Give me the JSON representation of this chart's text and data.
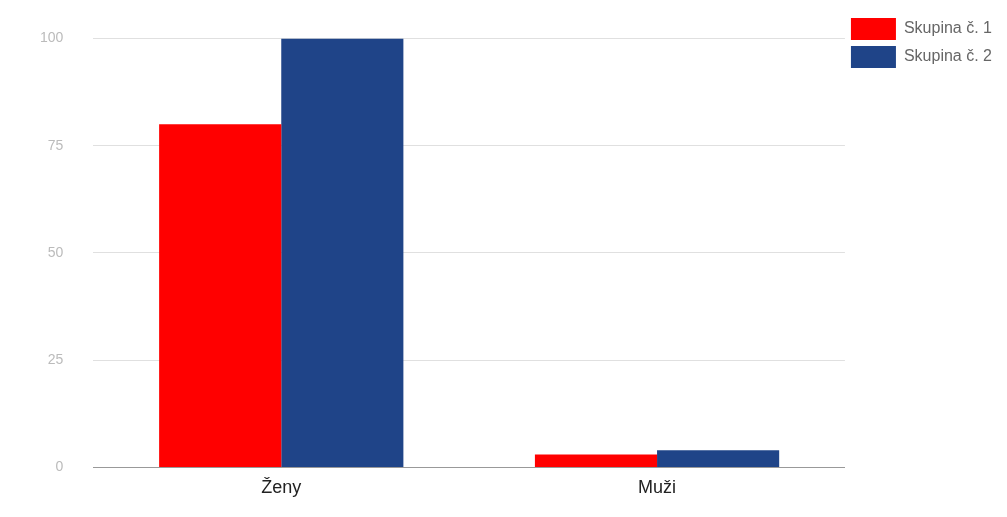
{
  "chart_data": {
    "type": "bar",
    "categories": [
      "Ženy",
      "Muži"
    ],
    "series": [
      {
        "name": "Skupina č. 1",
        "color": "#ff0000",
        "values": [
          80,
          3
        ]
      },
      {
        "name": "Skupina č. 2",
        "color": "#1f4488",
        "values": [
          100,
          4
        ]
      }
    ],
    "ylim": [
      0,
      100
    ],
    "yticks": [
      0,
      25,
      50,
      75,
      100
    ],
    "grid": "y",
    "legend": "top right"
  }
}
